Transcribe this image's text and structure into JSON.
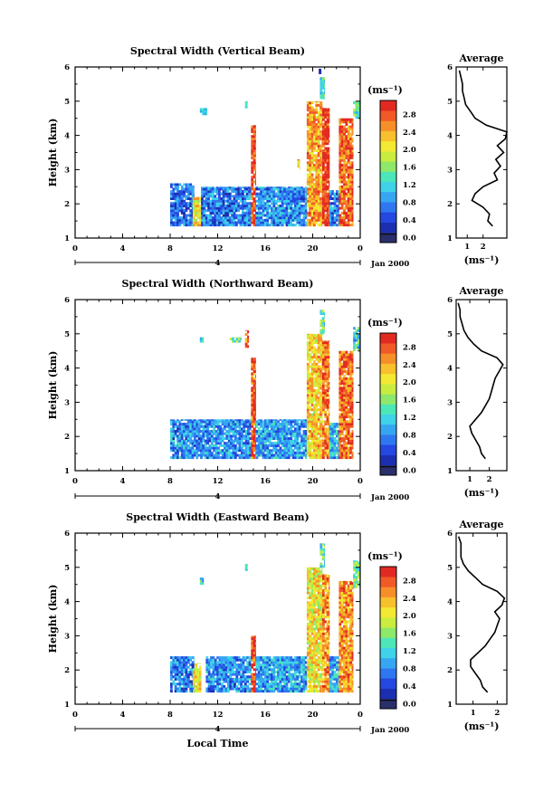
{
  "chart_data": [
    {
      "type": "heatmap",
      "title": "Spectral Width (Vertical Beam)",
      "ylabel": "Height (km)",
      "xlabel": "",
      "xticks": [
        "0",
        "4",
        "8",
        "12",
        "16",
        "20",
        "0"
      ],
      "yticks": [
        "1",
        "2",
        "3",
        "4",
        "5",
        "6"
      ],
      "date_label": "4",
      "date_suffix": "Jan 2000",
      "xlim": [
        0,
        24
      ],
      "ylim": [
        1,
        6
      ],
      "colorbar": {
        "unit": "(ms⁻¹)",
        "ticks": [
          "0.0",
          "0.4",
          "0.8",
          "1.2",
          "1.6",
          "2.0",
          "2.4",
          "2.8"
        ],
        "range": [
          0,
          3.0
        ]
      },
      "columns": [
        {
          "t0": 8.0,
          "t1": 10.0,
          "h0": 1.35,
          "h1": 2.6,
          "value": 0.5
        },
        {
          "t0": 9.9,
          "t1": 10.6,
          "h0": 1.35,
          "h1": 2.2,
          "value": 2.0
        },
        {
          "t0": 10.6,
          "t1": 14.8,
          "h0": 1.35,
          "h1": 2.5,
          "value": 0.6
        },
        {
          "t0": 14.8,
          "t1": 15.2,
          "h0": 1.35,
          "h1": 4.3,
          "value": 2.8
        },
        {
          "t0": 15.2,
          "t1": 19.5,
          "h0": 1.35,
          "h1": 2.5,
          "value": 0.7
        },
        {
          "t0": 19.5,
          "t1": 20.8,
          "h0": 1.35,
          "h1": 5.0,
          "value": 2.3
        },
        {
          "t0": 20.8,
          "t1": 21.4,
          "h0": 1.35,
          "h1": 4.8,
          "value": 2.9
        },
        {
          "t0": 21.4,
          "t1": 22.2,
          "h0": 1.35,
          "h1": 2.4,
          "value": 0.6
        },
        {
          "t0": 22.2,
          "t1": 23.4,
          "h0": 1.35,
          "h1": 4.5,
          "value": 2.6
        },
        {
          "t0": 23.4,
          "t1": 24.0,
          "h0": 4.5,
          "h1": 5.0,
          "value": 1.3
        }
      ],
      "patches": [
        {
          "t0": 10.5,
          "t1": 11.1,
          "h0": 4.6,
          "h1": 4.8,
          "value": 1.0
        },
        {
          "t0": 14.3,
          "t1": 14.5,
          "h0": 4.8,
          "h1": 5.0,
          "value": 1.4
        },
        {
          "t0": 18.7,
          "t1": 18.9,
          "h0": 3.0,
          "h1": 3.3,
          "value": 2.1
        },
        {
          "t0": 20.6,
          "t1": 21.0,
          "h0": 5.0,
          "h1": 5.7,
          "value": 1.2
        },
        {
          "t0": 20.5,
          "t1": 20.7,
          "h0": 5.8,
          "h1": 5.95,
          "value": 0.3
        }
      ],
      "average": {
        "xlabel": "(ms⁻¹)",
        "title": "Average",
        "xticks": [
          "1",
          "2"
        ],
        "yticks": [
          "1",
          "2",
          "3",
          "4",
          "5",
          "6"
        ],
        "xlim": [
          0.3,
          3.5
        ],
        "ylim": [
          1,
          6
        ],
        "heights": [
          1.35,
          1.5,
          1.7,
          1.9,
          2.1,
          2.3,
          2.5,
          2.7,
          2.9,
          3.1,
          3.3,
          3.5,
          3.7,
          3.9,
          4.1,
          4.3,
          4.5,
          4.7,
          4.9,
          5.1,
          5.3,
          5.5,
          5.7,
          5.9
        ],
        "values": [
          2.6,
          2.3,
          2.4,
          2.0,
          1.3,
          1.5,
          2.0,
          2.9,
          2.7,
          3.1,
          2.8,
          3.3,
          2.9,
          3.4,
          3.5,
          2.2,
          1.5,
          1.2,
          0.9,
          0.8,
          0.7,
          0.7,
          0.6,
          0.5
        ]
      }
    },
    {
      "type": "heatmap",
      "title": "Spectral Width (Northward Beam)",
      "ylabel": "Height (km)",
      "xlabel": "",
      "xticks": [
        "0",
        "4",
        "8",
        "12",
        "16",
        "20",
        "0"
      ],
      "yticks": [
        "1",
        "2",
        "3",
        "4",
        "5",
        "6"
      ],
      "date_label": "4",
      "date_suffix": "Jan 2000",
      "xlim": [
        0,
        24
      ],
      "ylim": [
        1,
        6
      ],
      "colorbar": {
        "unit": "(ms⁻¹)",
        "ticks": [
          "0.0",
          "0.4",
          "0.8",
          "1.2",
          "1.6",
          "2.0",
          "2.4",
          "2.8"
        ],
        "range": [
          0,
          3.0
        ]
      },
      "columns": [
        {
          "t0": 8.0,
          "t1": 14.8,
          "h0": 1.35,
          "h1": 2.5,
          "value": 0.7
        },
        {
          "t0": 14.8,
          "t1": 15.2,
          "h0": 1.35,
          "h1": 4.3,
          "value": 2.7
        },
        {
          "t0": 15.2,
          "t1": 19.5,
          "h0": 1.35,
          "h1": 2.5,
          "value": 0.8
        },
        {
          "t0": 19.5,
          "t1": 20.8,
          "h0": 1.35,
          "h1": 5.0,
          "value": 2.1
        },
        {
          "t0": 20.8,
          "t1": 21.4,
          "h0": 1.35,
          "h1": 4.8,
          "value": 2.5
        },
        {
          "t0": 21.4,
          "t1": 22.2,
          "h0": 1.35,
          "h1": 2.4,
          "value": 0.9
        },
        {
          "t0": 22.2,
          "t1": 23.4,
          "h0": 1.35,
          "h1": 4.5,
          "value": 2.6
        },
        {
          "t0": 23.4,
          "t1": 24.0,
          "h0": 4.5,
          "h1": 5.2,
          "value": 1.1
        }
      ],
      "patches": [
        {
          "t0": 10.5,
          "t1": 10.8,
          "h0": 4.75,
          "h1": 4.9,
          "value": 0.8
        },
        {
          "t0": 13.0,
          "t1": 14.0,
          "h0": 4.75,
          "h1": 4.9,
          "value": 1.4
        },
        {
          "t0": 14.3,
          "t1": 14.6,
          "h0": 4.6,
          "h1": 5.1,
          "value": 2.7
        },
        {
          "t0": 20.6,
          "t1": 21.0,
          "h0": 5.0,
          "h1": 5.7,
          "value": 1.3
        }
      ],
      "average": {
        "xlabel": "(ms⁻¹)",
        "title": "Average",
        "xticks": [
          "1",
          "2"
        ],
        "yticks": [
          "1",
          "2",
          "3",
          "4",
          "5",
          "6"
        ],
        "xlim": [
          0.3,
          2.9
        ],
        "ylim": [
          1,
          6
        ],
        "heights": [
          1.35,
          1.5,
          1.7,
          1.9,
          2.1,
          2.3,
          2.5,
          2.7,
          2.9,
          3.1,
          3.3,
          3.5,
          3.7,
          3.9,
          4.1,
          4.3,
          4.5,
          4.7,
          4.9,
          5.1,
          5.3,
          5.5,
          5.7,
          5.9
        ],
        "values": [
          1.8,
          1.6,
          1.5,
          1.3,
          1.1,
          1.0,
          1.3,
          1.6,
          1.8,
          2.0,
          2.1,
          2.2,
          2.3,
          2.5,
          2.7,
          2.4,
          1.6,
          1.2,
          0.9,
          0.7,
          0.6,
          0.5,
          0.5,
          0.4
        ]
      }
    },
    {
      "type": "heatmap",
      "title": "Spectral Width (Eastward Beam)",
      "ylabel": "Height (km)",
      "xlabel": "Local Time",
      "xticks": [
        "0",
        "4",
        "8",
        "12",
        "16",
        "20",
        "0"
      ],
      "yticks": [
        "1",
        "2",
        "3",
        "4",
        "5",
        "6"
      ],
      "date_label": "4",
      "date_suffix": "Jan 2000",
      "xlim": [
        0,
        24
      ],
      "ylim": [
        1,
        6
      ],
      "colorbar": {
        "unit": "(ms⁻¹)",
        "ticks": [
          "0.0",
          "0.4",
          "0.8",
          "1.2",
          "1.6",
          "2.0",
          "2.4",
          "2.8"
        ],
        "range": [
          0,
          3.0
        ]
      },
      "columns": [
        {
          "t0": 8.0,
          "t1": 10.0,
          "h0": 1.35,
          "h1": 2.4,
          "value": 0.6
        },
        {
          "t0": 9.9,
          "t1": 10.6,
          "h0": 1.35,
          "h1": 2.2,
          "value": 2.0
        },
        {
          "t0": 11.0,
          "t1": 14.8,
          "h0": 1.35,
          "h1": 2.4,
          "value": 0.7
        },
        {
          "t0": 14.8,
          "t1": 15.2,
          "h0": 1.35,
          "h1": 3.0,
          "value": 2.8
        },
        {
          "t0": 15.2,
          "t1": 19.5,
          "h0": 1.35,
          "h1": 2.4,
          "value": 0.8
        },
        {
          "t0": 19.5,
          "t1": 20.8,
          "h0": 1.35,
          "h1": 5.0,
          "value": 2.0
        },
        {
          "t0": 20.8,
          "t1": 21.4,
          "h0": 1.35,
          "h1": 4.8,
          "value": 2.4
        },
        {
          "t0": 21.4,
          "t1": 22.2,
          "h0": 1.35,
          "h1": 2.4,
          "value": 0.8
        },
        {
          "t0": 22.2,
          "t1": 23.4,
          "h0": 1.35,
          "h1": 4.6,
          "value": 2.4
        },
        {
          "t0": 23.4,
          "t1": 24.0,
          "h0": 4.4,
          "h1": 5.2,
          "value": 1.5
        }
      ],
      "patches": [
        {
          "t0": 10.5,
          "t1": 10.8,
          "h0": 4.5,
          "h1": 4.7,
          "value": 1.0
        },
        {
          "t0": 14.3,
          "t1": 14.5,
          "h0": 4.9,
          "h1": 5.1,
          "value": 1.2
        },
        {
          "t0": 20.6,
          "t1": 21.0,
          "h0": 5.0,
          "h1": 5.7,
          "value": 1.3
        }
      ],
      "average": {
        "xlabel": "(ms⁻¹)",
        "title": "Average",
        "xticks": [
          "1",
          "2"
        ],
        "yticks": [
          "1",
          "2",
          "3",
          "4",
          "5",
          "6"
        ],
        "xlim": [
          0.3,
          2.4
        ],
        "ylim": [
          1,
          6
        ],
        "heights": [
          1.35,
          1.5,
          1.7,
          1.9,
          2.1,
          2.3,
          2.5,
          2.7,
          2.9,
          3.1,
          3.3,
          3.5,
          3.7,
          3.9,
          4.1,
          4.3,
          4.5,
          4.7,
          4.9,
          5.1,
          5.3,
          5.5,
          5.7,
          5.9
        ],
        "values": [
          1.6,
          1.4,
          1.3,
          1.1,
          0.9,
          0.9,
          1.2,
          1.5,
          1.7,
          1.9,
          2.0,
          2.1,
          1.9,
          2.2,
          2.3,
          2.0,
          1.4,
          1.1,
          0.8,
          0.6,
          0.5,
          0.5,
          0.5,
          0.4
        ]
      }
    }
  ]
}
